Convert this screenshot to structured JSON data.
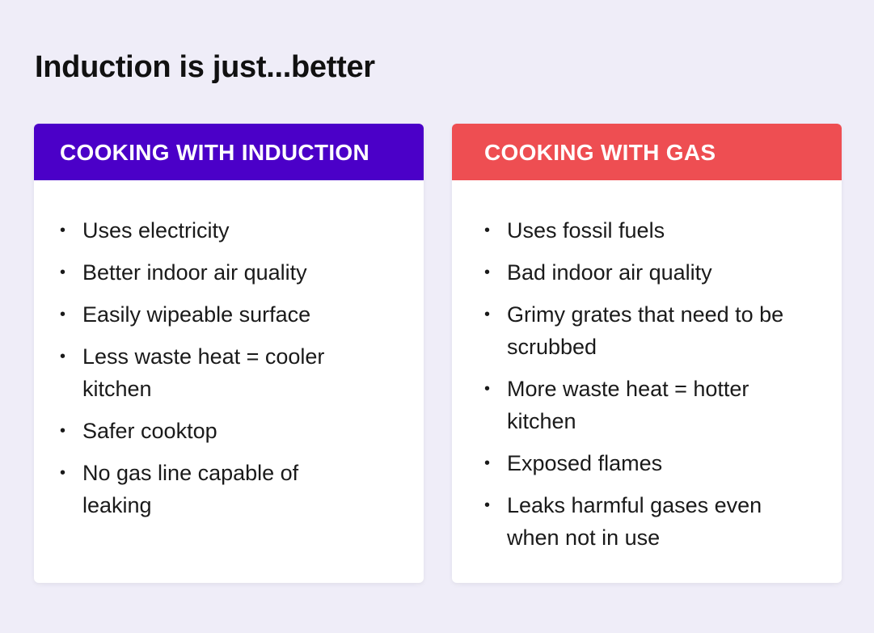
{
  "title": "Induction is just...better",
  "induction": {
    "header": "COOKING WITH INDUCTION",
    "color": "#4b00c8",
    "items": [
      "Uses electricity",
      "Better indoor air quality",
      "Easily wipeable surface",
      "Less waste heat = cooler kitchen",
      "Safer cooktop",
      "No gas line capable of leaking"
    ]
  },
  "gas": {
    "header": "COOKING WITH GAS",
    "color": "#ee4e52",
    "items": [
      "Uses fossil fuels",
      "Bad indoor air quality",
      "Grimy grates that need to be scrubbed",
      "More waste heat = hotter kitchen",
      "Exposed flames",
      "Leaks harmful gases even when not in use"
    ]
  }
}
